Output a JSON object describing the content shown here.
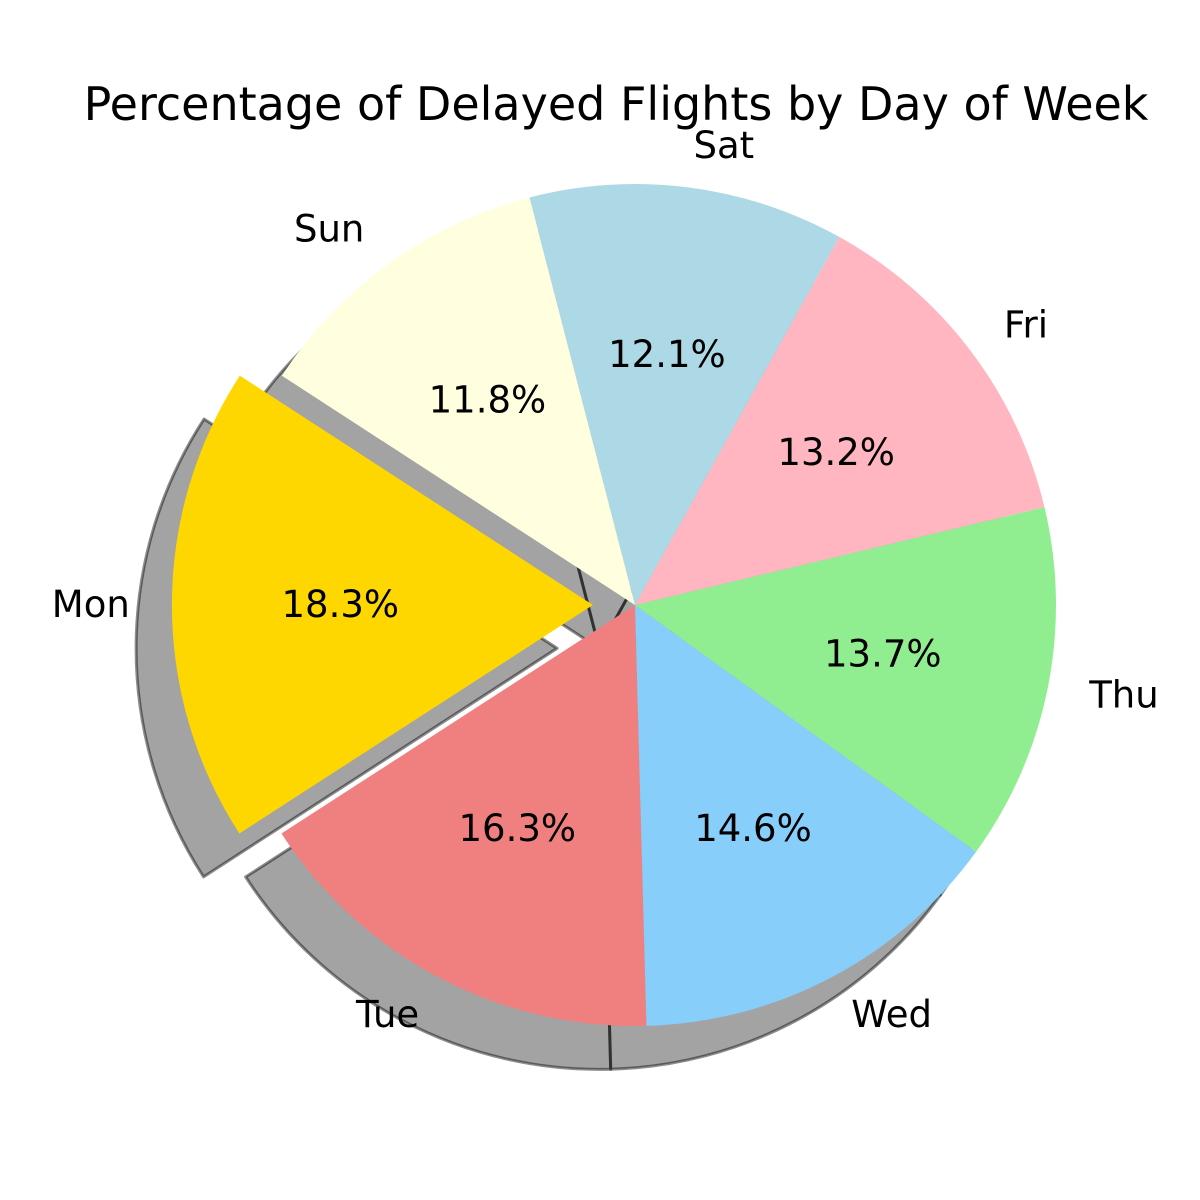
{
  "chart_data": {
    "type": "pie",
    "title": "Percentage of Delayed Flights by Day of Week",
    "categories": [
      "Mon",
      "Tue",
      "Wed",
      "Thu",
      "Fri",
      "Sat",
      "Sun"
    ],
    "values": [
      18.3,
      16.3,
      14.6,
      13.7,
      13.2,
      12.1,
      11.8
    ],
    "value_labels": [
      "18.3%",
      "16.3%",
      "14.6%",
      "13.7%",
      "13.2%",
      "12.1%",
      "11.8%"
    ],
    "colors": [
      "#ffd700",
      "#f08080",
      "#87cefa",
      "#90ee90",
      "#ffb6c1",
      "#add8e6",
      "#ffffe0"
    ],
    "exploded": [
      "Mon"
    ],
    "shadow": true,
    "legend": "none"
  }
}
